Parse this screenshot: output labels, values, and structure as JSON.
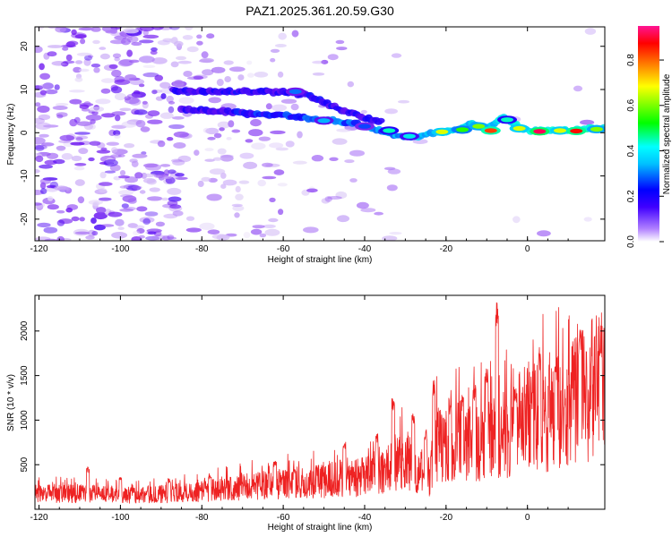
{
  "figure": {
    "title": "PAZ1.2025.361.20.59.G30"
  },
  "chart_data": [
    {
      "type": "heatmap",
      "title": "PAZ1.2025.361.20.59.G30",
      "xlabel": "Height of straight line (km)",
      "ylabel": "Frequency (Hz)",
      "xlim": [
        -121,
        19
      ],
      "ylim": [
        -25,
        24.5
      ],
      "x_ticks": [
        -120,
        -100,
        -80,
        -60,
        -40,
        -20,
        0
      ],
      "x_tick_labels": [
        "-120",
        "-100",
        "-80",
        "-60",
        "-40",
        "-20",
        "0"
      ],
      "y_ticks": [
        -20,
        -10,
        0,
        10,
        20
      ],
      "y_tick_labels": [
        "-20",
        "-10",
        "0",
        "10",
        "20"
      ],
      "colorbar": {
        "label": "Normalized spectral amplitude",
        "range": [
          0,
          0.95
        ],
        "ticks": [
          0.0,
          0.2,
          0.4,
          0.6,
          0.8
        ],
        "tick_labels": [
          "0.0",
          "0.2",
          "0.4",
          "0.6",
          "0.8"
        ],
        "colormap": [
          "#e6dcf5",
          "#a000ff",
          "#0000ff",
          "#00ffff",
          "#00ff00",
          "#ffff00",
          "#ff8000",
          "#ff0000",
          "#ff0080"
        ]
      },
      "ridges": [
        {
          "name": "main",
          "points": [
            [
              -85,
              5.5
            ],
            [
              -75,
              5.0
            ],
            [
              -70,
              4.5
            ],
            [
              -65,
              4.2
            ],
            [
              -60,
              4.0
            ],
            [
              -55,
              3.5
            ],
            [
              -50,
              3.0
            ],
            [
              -45,
              2.5
            ],
            [
              -42,
              2.0
            ],
            [
              -38,
              1.0
            ],
            [
              -33,
              -0.5
            ],
            [
              -28,
              -1.0
            ],
            [
              -25,
              -0.5
            ],
            [
              -22,
              0.0
            ],
            [
              -18,
              0.5
            ],
            [
              -14,
              2.0
            ],
            [
              -10,
              1.0
            ],
            [
              -6,
              3.5
            ],
            [
              -3,
              2.0
            ],
            [
              0,
              0.5
            ],
            [
              5,
              0.5
            ],
            [
              10,
              0.5
            ],
            [
              15,
              1.0
            ],
            [
              19,
              1.0
            ]
          ]
        },
        {
          "name": "upper",
          "points": [
            [
              -87,
              9.8
            ],
            [
              -80,
              9.5
            ],
            [
              -70,
              9.5
            ],
            [
              -62,
              9.5
            ],
            [
              -55,
              9.0
            ],
            [
              -50,
              7.0
            ],
            [
              -45,
              5.0
            ],
            [
              -40,
              3.5
            ],
            [
              -36,
              2.5
            ]
          ]
        }
      ],
      "peaks": [
        {
          "x": -57,
          "y": 9.5,
          "amp": 0.22
        },
        {
          "x": -50,
          "y": 2.8,
          "amp": 0.25
        },
        {
          "x": -40,
          "y": 1.5,
          "amp": 0.2
        },
        {
          "x": -34,
          "y": 0.5,
          "amp": 0.35
        },
        {
          "x": -29,
          "y": -0.8,
          "amp": 0.3
        },
        {
          "x": -21,
          "y": 0.2,
          "amp": 0.6
        },
        {
          "x": -16,
          "y": 0.7,
          "amp": 0.5
        },
        {
          "x": -12,
          "y": 1.5,
          "amp": 0.55
        },
        {
          "x": -9,
          "y": 0.5,
          "amp": 0.8
        },
        {
          "x": -5,
          "y": 3.0,
          "amp": 0.35
        },
        {
          "x": -2,
          "y": 1.0,
          "amp": 0.6
        },
        {
          "x": 3,
          "y": 0.3,
          "amp": 0.92
        },
        {
          "x": 8,
          "y": 0.5,
          "amp": 0.6
        },
        {
          "x": 12,
          "y": 0.4,
          "amp": 0.85
        },
        {
          "x": 17,
          "y": 0.8,
          "amp": 0.55
        }
      ]
    },
    {
      "type": "line",
      "xlabel": "Height of straight line (km)",
      "ylabel": "SNR (10 * v/v)",
      "xlim": [
        -121,
        19
      ],
      "ylim": [
        0,
        2400
      ],
      "color": "#ee2222",
      "x_ticks": [
        -120,
        -100,
        -80,
        -60,
        -40,
        -20,
        0
      ],
      "x_tick_labels": [
        "-120",
        "-100",
        "-80",
        "-60",
        "-40",
        "-20",
        "0"
      ],
      "y_ticks": [
        500,
        1000,
        1500,
        2000
      ],
      "y_tick_labels": [
        "500",
        "1000",
        "1500",
        "2000"
      ],
      "series": [
        {
          "name": "SNR",
          "envelope": [
            [
              -121,
              200
            ],
            [
              -110,
              200
            ],
            [
              -100,
              190
            ],
            [
              -90,
              190
            ],
            [
              -80,
              240
            ],
            [
              -70,
              280
            ],
            [
              -60,
              330
            ],
            [
              -50,
              360
            ],
            [
              -42,
              400
            ],
            [
              -36,
              470
            ],
            [
              -33,
              560
            ],
            [
              -30,
              620
            ],
            [
              -27,
              520
            ],
            [
              -24,
              420
            ],
            [
              -22,
              880
            ],
            [
              -20,
              820
            ],
            [
              -15,
              900
            ],
            [
              -10,
              860
            ],
            [
              -6,
              960
            ],
            [
              -2,
              1120
            ],
            [
              2,
              1180
            ],
            [
              6,
              1180
            ],
            [
              10,
              1300
            ],
            [
              14,
              1480
            ],
            [
              19,
              1620
            ]
          ],
          "spikes": [
            [
              -108,
              480
            ],
            [
              -100,
              360
            ],
            [
              -88,
              350
            ],
            [
              -78,
              400
            ],
            [
              -62,
              560
            ],
            [
              -45,
              760
            ],
            [
              -37,
              850
            ],
            [
              -33,
              1300
            ],
            [
              -28,
              1100
            ],
            [
              -25,
              900
            ],
            [
              -23,
              1450
            ],
            [
              -19,
              1250
            ],
            [
              -16,
              1300
            ],
            [
              -13,
              1400
            ],
            [
              -10,
              1600
            ],
            [
              -7.5,
              2400
            ],
            [
              -3,
              1400
            ],
            [
              3,
              1750
            ],
            [
              7,
              1700
            ],
            [
              13,
              2050
            ],
            [
              18,
              1900
            ]
          ]
        }
      ]
    }
  ]
}
